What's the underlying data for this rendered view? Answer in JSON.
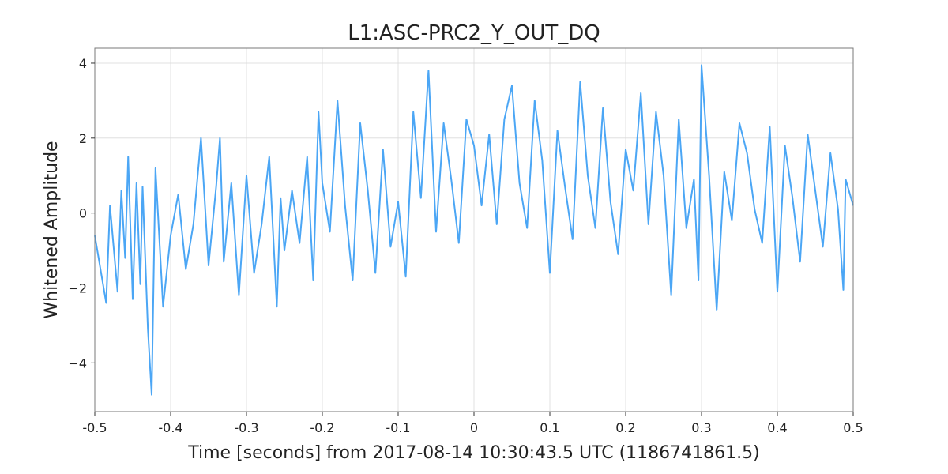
{
  "chart_data": {
    "type": "line",
    "title": "L1:ASC-PRC2_Y_OUT_DQ",
    "xlabel": "Time [seconds] from 2017-08-14 10:30:43.5 UTC (1186741861.5)",
    "ylabel": "Whitened Amplitude",
    "xlim": [
      -0.5,
      0.5
    ],
    "ylim": [
      -5.3,
      4.4
    ],
    "xticks": [
      -0.5,
      -0.4,
      -0.3,
      -0.2,
      -0.1,
      0,
      0.1,
      0.2,
      0.3,
      0.4,
      0.5
    ],
    "xtick_labels": [
      "-0.5",
      "-0.4",
      "-0.3",
      "-0.2",
      "-0.1",
      "0",
      "0.1",
      "0.2",
      "0.3",
      "0.4",
      "0.5"
    ],
    "yticks": [
      -4,
      -2,
      0,
      2,
      4
    ],
    "ytick_labels": [
      "−4",
      "−2",
      "0",
      "2",
      "4"
    ],
    "grid": true,
    "legend": "none",
    "color": "#4ba6f5",
    "series": [
      {
        "x": [
          -0.5,
          -0.485,
          -0.48,
          -0.47,
          -0.465,
          -0.46,
          -0.456,
          -0.45,
          -0.445,
          -0.44,
          -0.437,
          -0.43,
          -0.425,
          -0.42,
          -0.41,
          -0.4,
          -0.39,
          -0.38,
          -0.37,
          -0.36,
          -0.35,
          -0.34,
          -0.335,
          -0.33,
          -0.32,
          -0.31,
          -0.3,
          -0.29,
          -0.28,
          -0.27,
          -0.26,
          -0.255,
          -0.25,
          -0.24,
          -0.23,
          -0.22,
          -0.212,
          -0.205,
          -0.2,
          -0.19,
          -0.18,
          -0.17,
          -0.16,
          -0.15,
          -0.14,
          -0.13,
          -0.12,
          -0.11,
          -0.1,
          -0.09,
          -0.08,
          -0.07,
          -0.06,
          -0.05,
          -0.04,
          -0.03,
          -0.02,
          -0.01,
          0,
          0.01,
          0.02,
          0.03,
          0.04,
          0.05,
          0.06,
          0.07,
          0.08,
          0.09,
          0.1,
          0.11,
          0.12,
          0.13,
          0.14,
          0.15,
          0.16,
          0.17,
          0.18,
          0.19,
          0.2,
          0.21,
          0.22,
          0.23,
          0.24,
          0.25,
          0.26,
          0.27,
          0.28,
          0.29,
          0.296,
          0.3,
          0.31,
          0.32,
          0.33,
          0.34,
          0.35,
          0.36,
          0.37,
          0.38,
          0.39,
          0.4,
          0.41,
          0.42,
          0.43,
          0.44,
          0.45,
          0.46,
          0.47,
          0.48,
          0.487,
          0.49,
          0.5
        ],
        "y": [
          -0.6,
          -2.4,
          0.2,
          -2.1,
          0.6,
          -1.2,
          1.5,
          -2.3,
          0.8,
          -1.9,
          0.7,
          -3.1,
          -4.85,
          1.2,
          -2.5,
          -0.6,
          0.5,
          -1.5,
          -0.3,
          2.0,
          -1.4,
          0.7,
          2.0,
          -1.3,
          0.8,
          -2.2,
          1.0,
          -1.6,
          -0.3,
          1.5,
          -2.5,
          0.4,
          -1.0,
          0.6,
          -0.8,
          1.5,
          -1.8,
          2.7,
          0.8,
          -0.5,
          3.0,
          0.2,
          -1.8,
          2.4,
          0.6,
          -1.6,
          1.7,
          -0.9,
          0.3,
          -1.7,
          2.7,
          0.4,
          3.8,
          -0.5,
          2.4,
          0.9,
          -0.8,
          2.5,
          1.8,
          0.2,
          2.1,
          -0.3,
          2.5,
          3.4,
          0.8,
          -0.4,
          3.0,
          1.4,
          -1.6,
          2.2,
          0.7,
          -0.7,
          3.5,
          1.0,
          -0.4,
          2.8,
          0.3,
          -1.1,
          1.7,
          0.6,
          3.2,
          -0.3,
          2.7,
          1.0,
          -2.2,
          2.5,
          -0.4,
          0.9,
          -1.8,
          3.95,
          1.0,
          -2.6,
          1.1,
          -0.2,
          2.4,
          1.6,
          0.1,
          -0.8,
          2.3,
          -2.1,
          1.8,
          0.4,
          -1.3,
          2.1,
          0.6,
          -0.9,
          1.6,
          0.1,
          -2.05,
          0.9,
          0.2
        ]
      }
    ]
  }
}
